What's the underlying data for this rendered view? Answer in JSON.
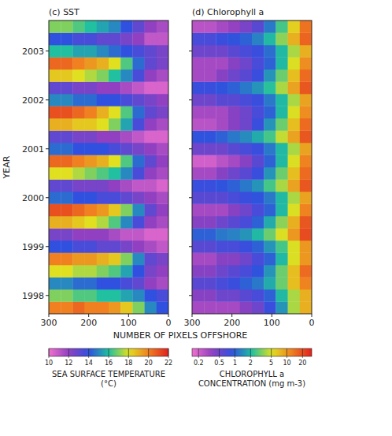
{
  "chart_data": [
    {
      "type": "heatmap",
      "title": "(c) SST",
      "x_label": "NUMBER OF PIXELS OFFSHORE",
      "y_label": "YEAR",
      "x": [
        285,
        255,
        225,
        195,
        165,
        135,
        105,
        75,
        45,
        15
      ],
      "y": [
        1997.75,
        1998.0,
        1998.25,
        1998.5,
        1998.75,
        1999.0,
        1999.25,
        1999.5,
        1999.75,
        2000.0,
        2000.25,
        2000.5,
        2000.75,
        2001.0,
        2001.25,
        2001.5,
        2001.75,
        2002.0,
        2002.25,
        2002.5,
        2002.75,
        2003.0,
        2003.25,
        2003.5
      ],
      "values": [
        [
          20,
          20,
          20.5,
          20,
          20,
          19.5,
          18.5,
          17,
          15,
          14
        ],
        [
          17,
          17,
          16.5,
          16.5,
          16,
          16,
          15.5,
          15,
          14,
          13.5
        ],
        [
          15,
          15,
          14.5,
          14.5,
          14,
          14,
          13.5,
          13,
          12,
          11.5
        ],
        [
          18,
          18,
          17.5,
          17.5,
          17,
          16.5,
          15.5,
          14,
          12.5,
          12
        ],
        [
          20,
          20,
          19.5,
          19.5,
          19,
          18.5,
          17,
          15,
          13,
          12.5
        ],
        [
          14,
          14,
          13.5,
          13.5,
          13,
          13,
          12.5,
          12,
          11.5,
          11
        ],
        [
          12.5,
          12.5,
          12,
          12,
          12,
          11.5,
          11,
          11,
          10.5,
          10.5
        ],
        [
          19,
          19,
          18.5,
          18,
          17.5,
          16.5,
          15,
          13.5,
          12,
          11.5
        ],
        [
          21,
          21,
          20.5,
          20,
          19.5,
          18.5,
          17,
          15,
          13,
          12
        ],
        [
          14.5,
          14.5,
          14,
          14,
          13.5,
          13.5,
          13,
          12.5,
          12,
          11.5
        ],
        [
          13,
          13,
          12.5,
          12.5,
          12.5,
          12,
          11.5,
          11,
          11,
          10.5
        ],
        [
          18,
          18,
          17.5,
          17,
          16.5,
          16,
          15,
          13.5,
          12,
          11.5
        ],
        [
          20.5,
          20.5,
          20,
          19.5,
          19,
          18,
          16.5,
          14.5,
          13,
          12
        ],
        [
          14.5,
          14.5,
          14,
          14,
          14,
          13.5,
          13,
          12.5,
          12,
          11.5
        ],
        [
          13,
          13,
          12.5,
          12.5,
          12,
          12,
          11.5,
          11,
          10.5,
          10.5
        ],
        [
          19,
          19,
          18.5,
          18.5,
          18,
          17,
          15.5,
          13.5,
          12,
          11.5
        ],
        [
          21,
          21,
          20.5,
          20,
          19,
          18,
          16.5,
          14.5,
          13,
          12.5
        ],
        [
          15,
          15,
          14.5,
          14.5,
          14,
          14,
          13.5,
          13,
          12.5,
          12
        ],
        [
          13,
          13,
          12.5,
          12.5,
          12,
          12,
          11.5,
          11,
          10.5,
          10.5
        ],
        [
          18.5,
          18.5,
          18,
          17.5,
          17,
          16,
          15,
          13.5,
          12,
          11.5
        ],
        [
          20.5,
          20.5,
          20,
          19.5,
          19,
          18,
          16.5,
          14.5,
          13,
          12.5
        ],
        [
          16,
          16,
          15.5,
          15.5,
          15,
          14.5,
          14,
          13.5,
          13,
          12.5
        ],
        [
          14,
          14,
          13.5,
          13.5,
          13,
          13,
          12.5,
          12,
          11,
          11
        ],
        [
          17,
          17,
          16.5,
          16,
          15.5,
          15,
          14,
          13,
          12,
          11.5
        ]
      ],
      "xlim": [
        300,
        0
      ],
      "xticks": [
        300,
        200,
        100,
        0
      ],
      "ylim": [
        1997.625,
        2003.625
      ],
      "yticks": [
        1998,
        1999,
        2000,
        2001,
        2002,
        2003
      ],
      "colorbar": {
        "label": "SEA SURFACE TEMPERATURE (°C)",
        "range": [
          10,
          22
        ],
        "ticks": [
          10,
          12,
          14,
          16,
          18,
          20,
          22
        ]
      }
    },
    {
      "type": "heatmap",
      "title": "(d) Chlorophyll a",
      "x": [
        285,
        255,
        225,
        195,
        165,
        135,
        105,
        75,
        45,
        15
      ],
      "y": [
        1997.75,
        1998.0,
        1998.25,
        1998.5,
        1998.75,
        1999.0,
        1999.25,
        1999.5,
        1999.75,
        2000.0,
        2000.25,
        2000.5,
        2000.75,
        2001.0,
        2001.25,
        2001.5,
        2001.75,
        2002.0,
        2002.25,
        2002.5,
        2002.75,
        2003.0,
        2003.25,
        2003.5
      ],
      "values": [
        [
          0.3,
          0.3,
          0.3,
          0.3,
          0.4,
          0.5,
          0.8,
          1.5,
          4,
          8
        ],
        [
          0.4,
          0.4,
          0.5,
          0.5,
          0.6,
          0.7,
          1,
          2,
          4,
          8
        ],
        [
          0.6,
          0.6,
          0.7,
          0.8,
          1,
          1.2,
          1.8,
          3,
          7,
          12
        ],
        [
          0.4,
          0.4,
          0.5,
          0.6,
          0.7,
          0.9,
          1.5,
          3,
          7,
          15
        ],
        [
          0.3,
          0.3,
          0.4,
          0.4,
          0.5,
          0.7,
          1,
          2,
          5,
          10
        ],
        [
          0.6,
          0.6,
          0.7,
          0.7,
          0.8,
          1,
          1.5,
          2.5,
          5,
          10
        ],
        [
          1,
          1,
          1.2,
          1.3,
          1.5,
          2,
          3,
          5,
          10,
          20
        ],
        [
          0.4,
          0.4,
          0.5,
          0.6,
          0.7,
          1,
          1.8,
          3.5,
          8,
          18
        ],
        [
          0.3,
          0.3,
          0.3,
          0.4,
          0.5,
          0.7,
          1,
          2,
          5,
          12
        ],
        [
          0.6,
          0.6,
          0.6,
          0.7,
          0.8,
          0.9,
          1.2,
          2,
          4,
          9
        ],
        [
          0.8,
          0.8,
          0.9,
          1,
          1.2,
          1.5,
          2.5,
          4,
          9,
          18
        ],
        [
          0.3,
          0.3,
          0.4,
          0.5,
          0.6,
          0.8,
          1.5,
          3,
          7,
          15
        ],
        [
          0.2,
          0.2,
          0.25,
          0.3,
          0.4,
          0.6,
          1,
          2,
          5,
          12
        ],
        [
          0.5,
          0.5,
          0.5,
          0.6,
          0.7,
          0.8,
          1.2,
          2,
          4,
          9
        ],
        [
          0.9,
          0.9,
          1,
          1.2,
          1.4,
          1.8,
          2.5,
          4.5,
          9,
          18
        ],
        [
          0.25,
          0.25,
          0.3,
          0.4,
          0.5,
          0.8,
          1.5,
          3,
          7,
          15
        ],
        [
          0.3,
          0.3,
          0.3,
          0.4,
          0.5,
          0.7,
          1,
          2,
          5,
          11
        ],
        [
          0.5,
          0.5,
          0.6,
          0.6,
          0.7,
          0.8,
          1.2,
          2,
          4,
          9
        ],
        [
          0.8,
          0.8,
          0.9,
          1,
          1.2,
          1.5,
          2.2,
          4,
          9,
          18
        ],
        [
          0.3,
          0.3,
          0.4,
          0.5,
          0.6,
          0.8,
          1.5,
          3,
          7,
          15
        ],
        [
          0.3,
          0.3,
          0.3,
          0.4,
          0.5,
          0.7,
          1,
          2,
          5,
          11
        ],
        [
          0.5,
          0.5,
          0.5,
          0.6,
          0.7,
          0.8,
          1.1,
          2,
          4,
          8
        ],
        [
          0.7,
          0.7,
          0.8,
          0.9,
          1,
          1.3,
          2,
          3.5,
          8,
          16
        ],
        [
          0.25,
          0.25,
          0.3,
          0.35,
          0.45,
          0.6,
          1.2,
          2.5,
          6,
          14
        ]
      ],
      "xlim": [
        300,
        0
      ],
      "xticks": [
        300,
        200,
        100,
        0
      ],
      "ylim": [
        1997.625,
        2003.625
      ],
      "yticks": [
        1998,
        1999,
        2000,
        2001,
        2002,
        2003
      ],
      "tick_labels": "x",
      "colorbar": {
        "label": "CHLOROPHYLL a CONCENTRATION (mg m-3)",
        "range": [
          0.15,
          30
        ],
        "ticks": [
          0.2,
          0.5,
          1,
          2,
          5,
          10,
          20
        ],
        "log": true
      }
    }
  ]
}
